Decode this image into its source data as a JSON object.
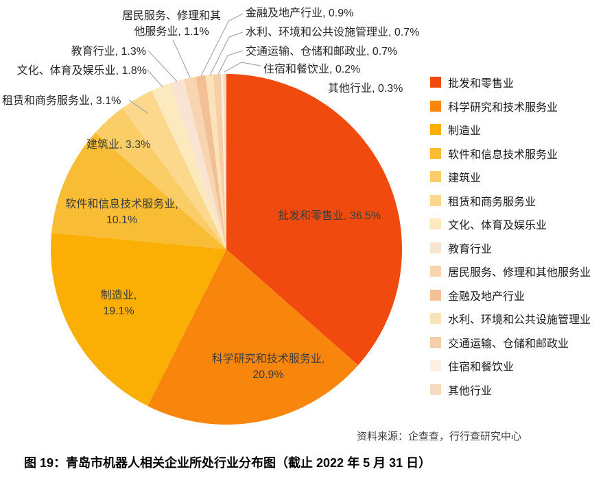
{
  "figure": {
    "caption": "图 19：青岛市机器人相关企业所处行业分布图（截止 2022 年 5 月 31 日）",
    "source": "资料来源：企查查，行行查研究中心"
  },
  "chart_data": {
    "type": "pie",
    "title": "青岛市机器人相关企业所处行业分布图（截止 2022 年 5 月 31 日）",
    "unit": "%",
    "legend_position": "right",
    "start_angle": "12 o'clock, clockwise",
    "categories": [
      "批发和零售业",
      "科学研究和技术服务业",
      "制造业",
      "软件和信息技术服务业",
      "建筑业",
      "租赁和商务服务业",
      "文化、体育及娱乐业",
      "教育行业",
      "居民服务、修理和其他服务业",
      "金融及地产行业",
      "水利、环境和公共设施管理业",
      "交通运输、仓储和邮政业",
      "住宿和餐饮业",
      "其他行业"
    ],
    "values": [
      36.5,
      20.9,
      19.1,
      10.1,
      3.3,
      3.1,
      1.8,
      1.3,
      1.1,
      0.9,
      0.7,
      0.7,
      0.2,
      0.3
    ],
    "colors": [
      "#F04A0E",
      "#F8860D",
      "#FBAE03",
      "#F8BC35",
      "#FACD67",
      "#FBD88C",
      "#FCE9BD",
      "#F9E4D3",
      "#F8D5B0",
      "#F3BF94",
      "#FAE3B8",
      "#F6CFA9",
      "#FDEFE2",
      "#F8DAC0"
    ]
  },
  "pie_labels": [
    "金融及地产行业, 0.9%",
    "水利、环境和公共设施管理业, 0.7%",
    "交通运输、仓储和邮政业, 0.7%",
    "住宿和餐饮业, 0.2%",
    "其他行业, 0.3%",
    "居民服务、修理和其\n他服务业, 1.1%",
    "教育行业, 1.3%",
    "文化、体育及娱乐业, 1.8%",
    "租赁和商务服务业, 3.1%",
    "建筑业, 3.3%",
    "软件和信息技术服务业,\n10.1%",
    "批发和零售业, 36.5%",
    "制造业,\n19.1%",
    "科学研究和技术服务业,\n20.9%"
  ]
}
